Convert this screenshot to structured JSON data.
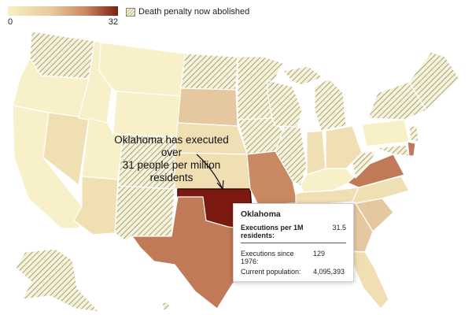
{
  "legend": {
    "min_label": "0",
    "max_label": "32",
    "abolished_label": "Death penalty now abolished",
    "colors": [
      "#f7efc6",
      "#e8c79c",
      "#c98a63",
      "#7f1d14"
    ]
  },
  "annotation": {
    "line1": "Oklahoma has executed over",
    "line2": "31 people per million residents"
  },
  "tooltip": {
    "state": "Oklahoma",
    "rate_label": "Executions per 1M residents:",
    "rate_value": "31.5",
    "executions_label": "Executions since 1976:",
    "executions_value": "129",
    "population_label": "Current population:",
    "population_value": "4,095,393"
  },
  "map_colors": {
    "hatch_line": "#8f8f5c",
    "hatch_bg": "#f6f2dc",
    "lightest": "#f8f0c8",
    "light": "#f0dfb3",
    "tan": "#e6c8a0",
    "mid": "#d4a37c",
    "dark": "#c07a57",
    "max": "#7c1a12"
  }
}
